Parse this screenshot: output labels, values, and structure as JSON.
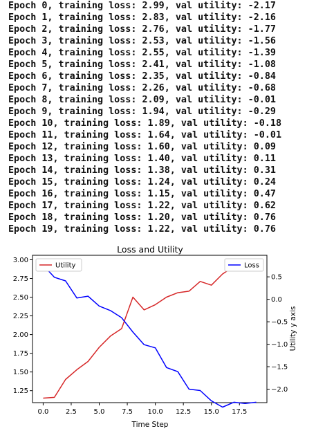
{
  "log_lines": [
    "Epoch 0, training loss: 2.99, val utility: -2.17",
    "Epoch 1, training loss: 2.83, val utility: -2.16",
    "Epoch 2, training loss: 2.76, val utility: -1.77",
    "Epoch 3, training loss: 2.53, val utility: -1.56",
    "Epoch 4, training loss: 2.55, val utility: -1.39",
    "Epoch 5, training loss: 2.41, val utility: -1.08",
    "Epoch 6, training loss: 2.35, val utility: -0.84",
    "Epoch 7, training loss: 2.26, val utility: -0.68",
    "Epoch 8, training loss: 2.09, val utility: -0.01",
    "Epoch 9, training loss: 1.94, val utility: -0.29",
    "Epoch 10, training loss: 1.89, val utility: -0.18",
    "Epoch 11, training loss: 1.64, val utility: -0.01",
    "Epoch 12, training loss: 1.60, val utility: 0.09",
    "Epoch 13, training loss: 1.40, val utility: 0.11",
    "Epoch 14, training loss: 1.38, val utility: 0.31",
    "Epoch 15, training loss: 1.24, val utility: 0.24",
    "Epoch 16, training loss: 1.15, val utility: 0.47",
    "Epoch 17, training loss: 1.22, val utility: 0.62",
    "Epoch 18, training loss: 1.20, val utility: 0.76",
    "Epoch 19, training loss: 1.22, val utility: 0.76"
  ],
  "chart_data": {
    "type": "line",
    "title": "Loss and Utility",
    "xlabel": "Time Step",
    "ylabel_left": "",
    "ylabel_right": "Utility y axis",
    "x": [
      0,
      1,
      2,
      3,
      4,
      5,
      6,
      7,
      8,
      9,
      10,
      11,
      12,
      13,
      14,
      15,
      16,
      17,
      18,
      19
    ],
    "xlim": [
      -0.95,
      19.95
    ],
    "xticks": [
      0.0,
      2.5,
      5.0,
      7.5,
      10.0,
      12.5,
      15.0,
      17.5
    ],
    "xtick_labels": [
      "0.0",
      "2.5",
      "5.0",
      "7.5",
      "10.0",
      "12.5",
      "15.0",
      "17.5"
    ],
    "ylim_left": [
      1.09,
      3.06
    ],
    "yticks_left": [
      1.25,
      1.5,
      1.75,
      2.0,
      2.25,
      2.5,
      2.75,
      3.0
    ],
    "ytick_labels_left": [
      "1.25",
      "1.50",
      "1.75",
      "2.00",
      "2.25",
      "2.50",
      "2.75",
      "3.00"
    ],
    "ylim_right": [
      -2.3,
      0.98
    ],
    "yticks_right": [
      -2.0,
      -1.5,
      -1.0,
      -0.5,
      0.0,
      0.5
    ],
    "ytick_labels_right": [
      "−2.0",
      "−1.5",
      "−1.0",
      "−0.5",
      "0.0",
      "0.5"
    ],
    "grid": false,
    "series": [
      {
        "name": "Utility",
        "axis": "left",
        "color": "#d62728",
        "legend": "upper-left",
        "values": [
          1.15,
          1.16,
          1.4,
          1.53,
          1.64,
          1.83,
          1.98,
          2.08,
          2.5,
          2.33,
          2.4,
          2.5,
          2.56,
          2.58,
          2.71,
          2.66,
          2.81,
          2.91,
          2.99,
          2.99
        ]
      },
      {
        "name": "Loss",
        "axis": "right",
        "color": "#0000ff",
        "legend": "upper-right",
        "values": [
          0.76,
          0.49,
          0.41,
          0.03,
          0.07,
          -0.15,
          -0.25,
          -0.41,
          -0.73,
          -1.01,
          -1.08,
          -1.52,
          -1.61,
          -2.0,
          -2.03,
          -2.26,
          -2.4,
          -2.29,
          -2.32,
          -2.29
        ]
      }
    ]
  }
}
